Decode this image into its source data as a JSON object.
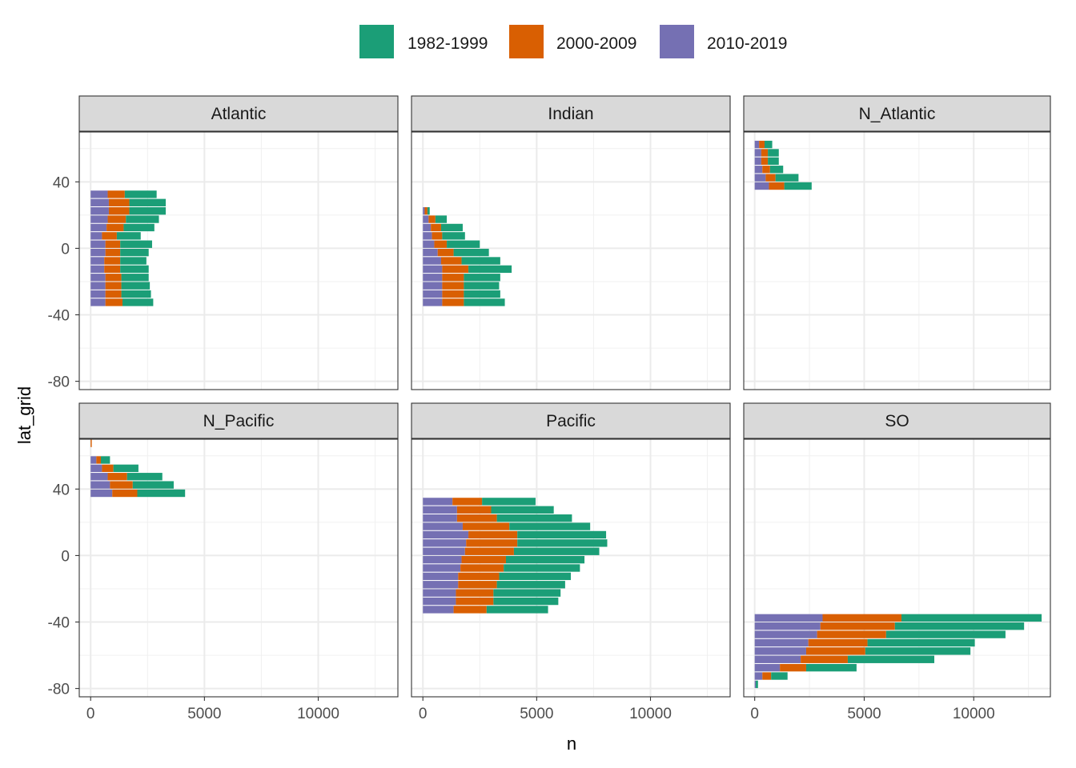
{
  "chart_data": {
    "type": "bar",
    "orientation": "horizontal",
    "stacked": true,
    "xlabel": "n",
    "ylabel": "lat_grid",
    "xlim": [
      -500,
      13500
    ],
    "ylim": [
      -85,
      70
    ],
    "x_ticks": [
      0,
      5000,
      10000
    ],
    "x_tick_labels": [
      "0",
      "5000",
      "10000"
    ],
    "y_ticks": [
      -80,
      -40,
      0,
      40
    ],
    "y_tick_labels": [
      "-80",
      "-40",
      "0",
      "40"
    ],
    "grid": true,
    "legend": {
      "position": "top",
      "entries": [
        {
          "key": "1982-1999",
          "label": "1982-1999",
          "color": "#1B9E77"
        },
        {
          "key": "2000-2009",
          "label": "2000-2009",
          "color": "#D95F02"
        },
        {
          "key": "2010-2019",
          "label": "2010-2019",
          "color": "#7570B3"
        }
      ]
    },
    "panels": [
      {
        "name": "Atlantic",
        "bars": [
          {
            "lat": 32.5,
            "2010-2019": 750,
            "2000-2009": 750,
            "1982-1999": 1400
          },
          {
            "lat": 27.5,
            "2010-2019": 800,
            "2000-2009": 900,
            "1982-1999": 1600
          },
          {
            "lat": 22.5,
            "2010-2019": 800,
            "2000-2009": 900,
            "1982-1999": 1600
          },
          {
            "lat": 17.5,
            "2010-2019": 750,
            "2000-2009": 800,
            "1982-1999": 1450
          },
          {
            "lat": 12.5,
            "2010-2019": 700,
            "2000-2009": 750,
            "1982-1999": 1350
          },
          {
            "lat": 7.5,
            "2010-2019": 500,
            "2000-2009": 650,
            "1982-1999": 1050
          },
          {
            "lat": 2.5,
            "2010-2019": 650,
            "2000-2009": 650,
            "1982-1999": 1400
          },
          {
            "lat": -2.5,
            "2010-2019": 650,
            "2000-2009": 650,
            "1982-1999": 1250
          },
          {
            "lat": -7.5,
            "2010-2019": 600,
            "2000-2009": 700,
            "1982-1999": 1150
          },
          {
            "lat": -12.5,
            "2010-2019": 600,
            "2000-2009": 700,
            "1982-1999": 1250
          },
          {
            "lat": -17.5,
            "2010-2019": 650,
            "2000-2009": 700,
            "1982-1999": 1200
          },
          {
            "lat": -22.5,
            "2010-2019": 650,
            "2000-2009": 700,
            "1982-1999": 1250
          },
          {
            "lat": -27.5,
            "2010-2019": 650,
            "2000-2009": 700,
            "1982-1999": 1300
          },
          {
            "lat": -32.5,
            "2010-2019": 650,
            "2000-2009": 750,
            "1982-1999": 1350
          }
        ]
      },
      {
        "name": "Indian",
        "bars": [
          {
            "lat": 22.5,
            "2010-2019": 80,
            "2000-2009": 120,
            "1982-1999": 100
          },
          {
            "lat": 17.5,
            "2010-2019": 250,
            "2000-2009": 300,
            "1982-1999": 500
          },
          {
            "lat": 12.5,
            "2010-2019": 350,
            "2000-2009": 450,
            "1982-1999": 950
          },
          {
            "lat": 7.5,
            "2010-2019": 400,
            "2000-2009": 450,
            "1982-1999": 1000
          },
          {
            "lat": 2.5,
            "2010-2019": 500,
            "2000-2009": 550,
            "1982-1999": 1450
          },
          {
            "lat": -2.5,
            "2010-2019": 650,
            "2000-2009": 700,
            "1982-1999": 1550
          },
          {
            "lat": -7.5,
            "2010-2019": 800,
            "2000-2009": 900,
            "1982-1999": 1700
          },
          {
            "lat": -12.5,
            "2010-2019": 850,
            "2000-2009": 1150,
            "1982-1999": 1900
          },
          {
            "lat": -17.5,
            "2010-2019": 850,
            "2000-2009": 950,
            "1982-1999": 1600
          },
          {
            "lat": -22.5,
            "2010-2019": 850,
            "2000-2009": 950,
            "1982-1999": 1550
          },
          {
            "lat": -27.5,
            "2010-2019": 850,
            "2000-2009": 950,
            "1982-1999": 1600
          },
          {
            "lat": -32.5,
            "2010-2019": 850,
            "2000-2009": 950,
            "1982-1999": 1800
          }
        ]
      },
      {
        "name": "N_Atlantic",
        "bars": [
          {
            "lat": 62.5,
            "2010-2019": 200,
            "2000-2009": 250,
            "1982-1999": 350
          },
          {
            "lat": 57.5,
            "2010-2019": 300,
            "2000-2009": 300,
            "1982-1999": 500
          },
          {
            "lat": 52.5,
            "2010-2019": 300,
            "2000-2009": 300,
            "1982-1999": 500
          },
          {
            "lat": 47.5,
            "2010-2019": 350,
            "2000-2009": 350,
            "1982-1999": 600
          },
          {
            "lat": 42.5,
            "2010-2019": 500,
            "2000-2009": 450,
            "1982-1999": 1050
          },
          {
            "lat": 37.5,
            "2010-2019": 650,
            "2000-2009": 700,
            "1982-1999": 1250
          }
        ]
      },
      {
        "name": "N_Pacific",
        "bars": [
          {
            "lat": 67.5,
            "2010-2019": 0,
            "2000-2009": 50,
            "1982-1999": 0
          },
          {
            "lat": 57.5,
            "2010-2019": 250,
            "2000-2009": 200,
            "1982-1999": 400
          },
          {
            "lat": 52.5,
            "2010-2019": 500,
            "2000-2009": 500,
            "1982-1999": 1100
          },
          {
            "lat": 47.5,
            "2010-2019": 750,
            "2000-2009": 850,
            "1982-1999": 1550
          },
          {
            "lat": 42.5,
            "2010-2019": 850,
            "2000-2009": 1000,
            "1982-1999": 1800
          },
          {
            "lat": 37.5,
            "2010-2019": 950,
            "2000-2009": 1100,
            "1982-1999": 2100
          }
        ]
      },
      {
        "name": "Pacific",
        "bars": [
          {
            "lat": 32.5,
            "2010-2019": 1300,
            "2000-2009": 1300,
            "1982-1999": 2350
          },
          {
            "lat": 27.5,
            "2010-2019": 1500,
            "2000-2009": 1500,
            "1982-1999": 2750
          },
          {
            "lat": 22.5,
            "2010-2019": 1500,
            "2000-2009": 1750,
            "1982-1999": 3300
          },
          {
            "lat": 17.5,
            "2010-2019": 1750,
            "2000-2009": 2050,
            "1982-1999": 3550
          },
          {
            "lat": 12.5,
            "2010-2019": 2000,
            "2000-2009": 2150,
            "1982-1999": 3900
          },
          {
            "lat": 7.5,
            "2010-2019": 1900,
            "2000-2009": 2250,
            "1982-1999": 3950
          },
          {
            "lat": 2.5,
            "2010-2019": 1850,
            "2000-2009": 2150,
            "1982-1999": 3750
          },
          {
            "lat": -2.5,
            "2010-2019": 1700,
            "2000-2009": 1950,
            "1982-1999": 3450
          },
          {
            "lat": -7.5,
            "2010-2019": 1650,
            "2000-2009": 1900,
            "1982-1999": 3350
          },
          {
            "lat": -12.5,
            "2010-2019": 1550,
            "2000-2009": 1800,
            "1982-1999": 3150
          },
          {
            "lat": -17.5,
            "2010-2019": 1550,
            "2000-2009": 1700,
            "1982-1999": 3000
          },
          {
            "lat": -22.5,
            "2010-2019": 1450,
            "2000-2009": 1650,
            "1982-1999": 2950
          },
          {
            "lat": -27.5,
            "2010-2019": 1450,
            "2000-2009": 1650,
            "1982-1999": 2850
          },
          {
            "lat": -32.5,
            "2010-2019": 1350,
            "2000-2009": 1450,
            "1982-1999": 2700
          }
        ]
      },
      {
        "name": "SO",
        "bars": [
          {
            "lat": -37.5,
            "2010-2019": 3100,
            "2000-2009": 3600,
            "1982-1999": 6400
          },
          {
            "lat": -42.5,
            "2010-2019": 3000,
            "2000-2009": 3400,
            "1982-1999": 5900
          },
          {
            "lat": -47.5,
            "2010-2019": 2850,
            "2000-2009": 3150,
            "1982-1999": 5450
          },
          {
            "lat": -52.5,
            "2010-2019": 2450,
            "2000-2009": 2700,
            "1982-1999": 4900
          },
          {
            "lat": -57.5,
            "2010-2019": 2350,
            "2000-2009": 2700,
            "1982-1999": 4800
          },
          {
            "lat": -62.5,
            "2010-2019": 2100,
            "2000-2009": 2150,
            "1982-1999": 3950
          },
          {
            "lat": -67.5,
            "2010-2019": 1150,
            "2000-2009": 1200,
            "1982-1999": 2300
          },
          {
            "lat": -72.5,
            "2010-2019": 350,
            "2000-2009": 400,
            "1982-1999": 750
          },
          {
            "lat": -77.5,
            "2010-2019": 50,
            "2000-2009": 0,
            "1982-1999": 100
          }
        ]
      }
    ]
  }
}
